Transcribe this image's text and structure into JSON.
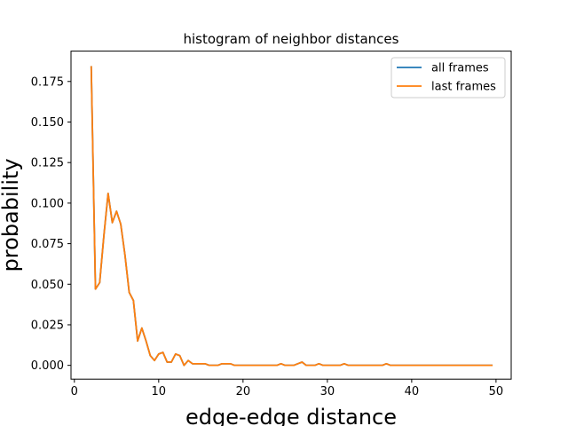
{
  "chart_data": {
    "type": "line",
    "title": "histogram of neighbor distances",
    "xlabel": "edge-edge distance",
    "ylabel": "probability",
    "xlim": [
      -0.4,
      51.8
    ],
    "ylim": [
      -0.0085,
      0.1937
    ],
    "xticks": [
      0,
      10,
      20,
      30,
      40,
      50
    ],
    "xtick_labels": [
      "0",
      "10",
      "20",
      "30",
      "40",
      "50"
    ],
    "yticks": [
      0.0,
      0.025,
      0.05,
      0.075,
      0.1,
      0.125,
      0.15,
      0.175
    ],
    "ytick_labels": [
      "0.000",
      "0.025",
      "0.050",
      "0.075",
      "0.100",
      "0.125",
      "0.150",
      "0.175"
    ],
    "grid": false,
    "legend_position": "top-right",
    "x": [
      2,
      2.5,
      3,
      3.5,
      4,
      4.5,
      5,
      5.5,
      6,
      6.5,
      7,
      7.5,
      8,
      8.5,
      9,
      9.5,
      10,
      10.5,
      11,
      11.5,
      12,
      12.5,
      13,
      13.5,
      14,
      14.5,
      15,
      15.5,
      16,
      16.5,
      17,
      17.5,
      18,
      18.5,
      19,
      19.5,
      20,
      20.5,
      21,
      21.5,
      22,
      22.5,
      23,
      23.5,
      24,
      24.5,
      25,
      25.5,
      26,
      26.5,
      27,
      27.5,
      28,
      28.5,
      29,
      29.5,
      30,
      30.5,
      31,
      31.5,
      32,
      32.5,
      33,
      33.5,
      34,
      34.5,
      35,
      35.5,
      36,
      36.5,
      37,
      37.5,
      38,
      38.5,
      39,
      39.5,
      40,
      40.5,
      41,
      41.5,
      42,
      42.5,
      43,
      43.5,
      44,
      44.5,
      45,
      45.5,
      46,
      46.5,
      47,
      47.5,
      48,
      48.5,
      49,
      49.5
    ],
    "series": [
      {
        "name": "all frames",
        "color": "#1f77b4",
        "values": [
          0.184,
          0.047,
          0.051,
          0.08,
          0.106,
          0.088,
          0.095,
          0.087,
          0.068,
          0.045,
          0.04,
          0.015,
          0.023,
          0.015,
          0.006,
          0.003,
          0.007,
          0.008,
          0.002,
          0.002,
          0.007,
          0.006,
          0.0,
          0.003,
          0.001,
          0.001,
          0.001,
          0.001,
          0.0,
          0.0,
          0.0,
          0.001,
          0.001,
          0.001,
          0.0,
          0.0,
          0.0,
          0.0,
          0.0,
          0.0,
          0.0,
          0.0,
          0.0,
          0.0,
          0.0,
          0.001,
          0.0,
          0.0,
          0.0,
          0.001,
          0.002,
          0.0,
          0.0,
          0.0,
          0.001,
          0.0,
          0.0,
          0.0,
          0.0,
          0.0,
          0.001,
          0.0,
          0.0,
          0.0,
          0.0,
          0.0,
          0.0,
          0.0,
          0.0,
          0.0,
          0.001,
          0.0,
          0.0,
          0.0,
          0.0,
          0.0,
          0.0,
          0.0,
          0.0,
          0.0,
          0.0,
          0.0,
          0.0,
          0.0,
          0.0,
          0.0,
          0.0,
          0.0,
          0.0,
          0.0,
          0.0,
          0.0,
          0.0,
          0.0,
          0.0,
          0.0
        ]
      },
      {
        "name": "last frames",
        "color": "#ff7f0e",
        "values": [
          0.184,
          0.047,
          0.051,
          0.08,
          0.106,
          0.088,
          0.095,
          0.087,
          0.068,
          0.045,
          0.04,
          0.015,
          0.023,
          0.015,
          0.006,
          0.003,
          0.007,
          0.008,
          0.002,
          0.002,
          0.007,
          0.006,
          0.0,
          0.003,
          0.001,
          0.001,
          0.001,
          0.001,
          0.0,
          0.0,
          0.0,
          0.001,
          0.001,
          0.001,
          0.0,
          0.0,
          0.0,
          0.0,
          0.0,
          0.0,
          0.0,
          0.0,
          0.0,
          0.0,
          0.0,
          0.001,
          0.0,
          0.0,
          0.0,
          0.001,
          0.002,
          0.0,
          0.0,
          0.0,
          0.001,
          0.0,
          0.0,
          0.0,
          0.0,
          0.0,
          0.001,
          0.0,
          0.0,
          0.0,
          0.0,
          0.0,
          0.0,
          0.0,
          0.0,
          0.0,
          0.001,
          0.0,
          0.0,
          0.0,
          0.0,
          0.0,
          0.0,
          0.0,
          0.0,
          0.0,
          0.0,
          0.0,
          0.0,
          0.0,
          0.0,
          0.0,
          0.0,
          0.0,
          0.0,
          0.0,
          0.0,
          0.0,
          0.0,
          0.0,
          0.0,
          0.0
        ]
      }
    ]
  }
}
